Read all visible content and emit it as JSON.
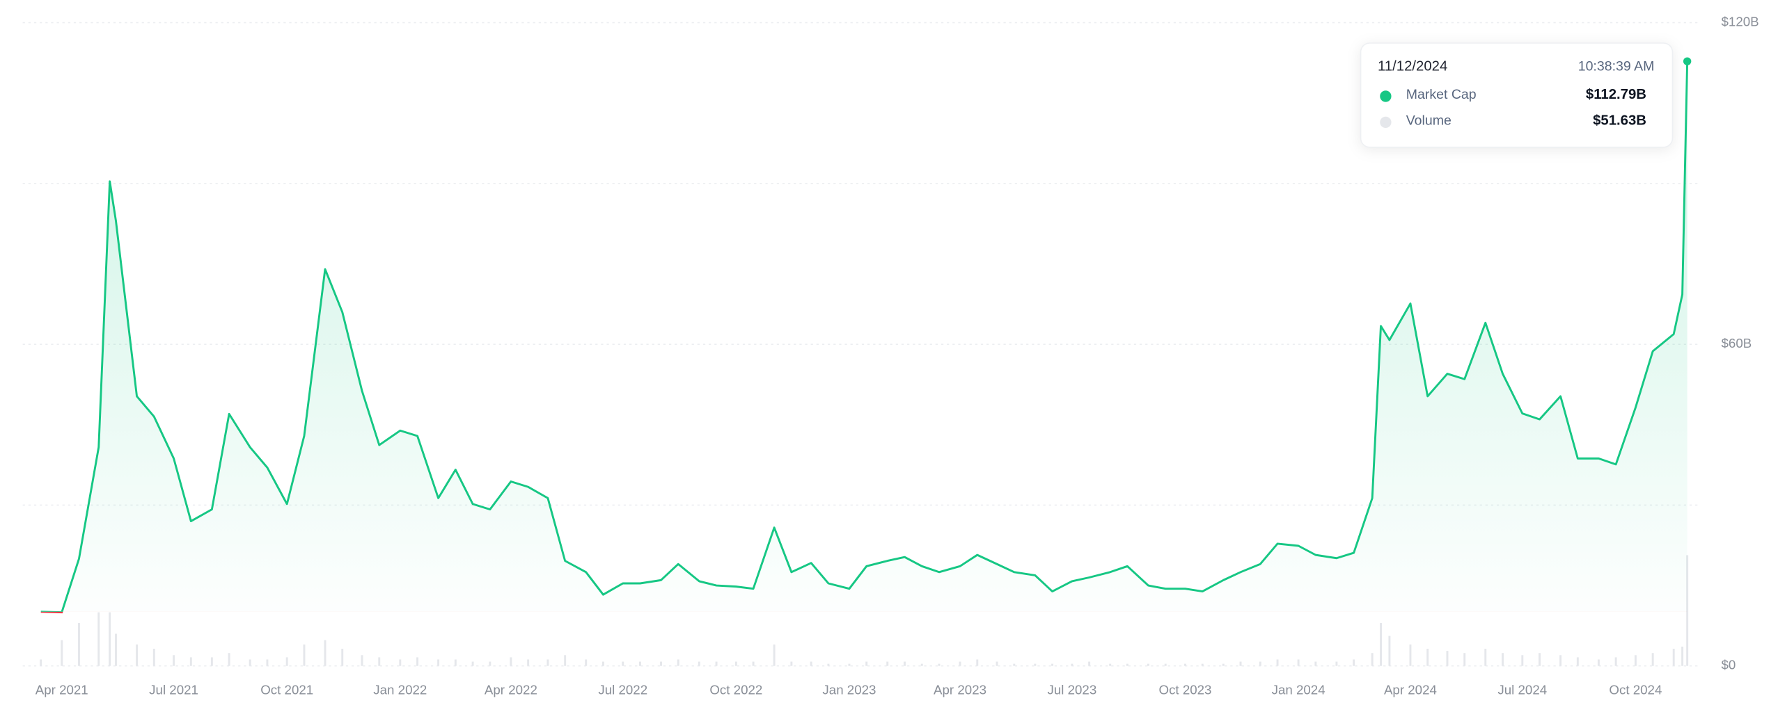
{
  "chart_data": {
    "type": "line",
    "x": [
      "2021-03-15",
      "2021-04-01",
      "2021-04-15",
      "2021-05-01",
      "2021-05-10",
      "2021-05-15",
      "2021-06-01",
      "2021-06-15",
      "2021-07-01",
      "2021-07-15",
      "2021-08-01",
      "2021-08-15",
      "2021-09-01",
      "2021-09-15",
      "2021-10-01",
      "2021-10-15",
      "2021-11-01",
      "2021-11-15",
      "2021-12-01",
      "2021-12-15",
      "2022-01-01",
      "2022-01-15",
      "2022-02-01",
      "2022-02-15",
      "2022-03-01",
      "2022-03-15",
      "2022-04-01",
      "2022-04-15",
      "2022-05-01",
      "2022-05-15",
      "2022-06-01",
      "2022-06-15",
      "2022-07-01",
      "2022-07-15",
      "2022-08-01",
      "2022-08-15",
      "2022-09-01",
      "2022-09-15",
      "2022-10-01",
      "2022-10-15",
      "2022-11-01",
      "2022-11-15",
      "2022-12-01",
      "2022-12-15",
      "2023-01-01",
      "2023-01-15",
      "2023-02-01",
      "2023-02-15",
      "2023-03-01",
      "2023-03-15",
      "2023-04-01",
      "2023-04-15",
      "2023-05-01",
      "2023-05-15",
      "2023-06-01",
      "2023-06-15",
      "2023-07-01",
      "2023-07-15",
      "2023-08-01",
      "2023-08-15",
      "2023-09-01",
      "2023-09-15",
      "2023-10-01",
      "2023-10-15",
      "2023-11-01",
      "2023-11-15",
      "2023-12-01",
      "2023-12-15",
      "2024-01-01",
      "2024-01-15",
      "2024-02-01",
      "2024-02-15",
      "2024-03-01",
      "2024-03-08",
      "2024-03-15",
      "2024-04-01",
      "2024-04-15",
      "2024-05-01",
      "2024-05-15",
      "2024-06-01",
      "2024-06-15",
      "2024-07-01",
      "2024-07-15",
      "2024-08-01",
      "2024-08-15",
      "2024-09-01",
      "2024-09-15",
      "2024-10-01",
      "2024-10-15",
      "2024-11-01",
      "2024-11-08",
      "2024-11-12"
    ],
    "series": [
      {
        "name": "Market Cap",
        "color": "#16c784",
        "negative_color": "#ea3943",
        "values": [
          10.1,
          10.0,
          20,
          40.8,
          90.4,
          83,
          50.3,
          46.5,
          38.7,
          27,
          29.2,
          47,
          40.8,
          37,
          30.2,
          42.9,
          74,
          66,
          51.3,
          41.2,
          43.9,
          42.9,
          31.3,
          36.6,
          30.2,
          29.2,
          34.4,
          33.4,
          31.3,
          19.6,
          17.5,
          13.3,
          15.4,
          15.4,
          16,
          19,
          15.8,
          15,
          14.8,
          14.4,
          25.8,
          17.5,
          19.2,
          15.4,
          14.4,
          18.6,
          19.6,
          20.3,
          18.6,
          17.5,
          18.6,
          20.7,
          19,
          17.5,
          16.9,
          13.9,
          15.8,
          16.5,
          17.5,
          18.6,
          15,
          14.4,
          14.4,
          13.9,
          16,
          17.5,
          19,
          22.8,
          22.4,
          20.7,
          20.1,
          21.1,
          31.3,
          63.4,
          60.8,
          67.6,
          50.3,
          54.5,
          53.5,
          64,
          54.5,
          47.1,
          46,
          50.3,
          38.7,
          38.7,
          37.6,
          48.2,
          58.7,
          61.9,
          69.3,
          112.79
        ]
      },
      {
        "name": "Volume",
        "color": "#e5e7eb",
        "type": "bar",
        "axis": "y2",
        "values": [
          3,
          12,
          20,
          25,
          25,
          15,
          10,
          8,
          5,
          4,
          4,
          6,
          3,
          3,
          4,
          10,
          12,
          8,
          5,
          4,
          3,
          4,
          3,
          3,
          2,
          2,
          4,
          3,
          3,
          5,
          3,
          2,
          2,
          2,
          2,
          3,
          2,
          2,
          2,
          2,
          10,
          2,
          2,
          1,
          1,
          2,
          2,
          2,
          1,
          1,
          2,
          3,
          2,
          1,
          1,
          1,
          1,
          2,
          1,
          1,
          1,
          1,
          1,
          1,
          1,
          2,
          2,
          3,
          3,
          2,
          2,
          3,
          6,
          20,
          14,
          10,
          8,
          7,
          6,
          8,
          6,
          5,
          6,
          5,
          4,
          3,
          4,
          5,
          6,
          8,
          9,
          51.63
        ]
      }
    ],
    "xlim": [
      "2021-03-15",
      "2024-11-12"
    ],
    "xticks": [
      {
        "value": "2021-04-01",
        "label": "Apr 2021"
      },
      {
        "value": "2021-07-01",
        "label": "Jul 2021"
      },
      {
        "value": "2021-10-01",
        "label": "Oct 2021"
      },
      {
        "value": "2022-01-01",
        "label": "Jan 2022"
      },
      {
        "value": "2022-04-01",
        "label": "Apr 2022"
      },
      {
        "value": "2022-07-01",
        "label": "Jul 2022"
      },
      {
        "value": "2022-10-01",
        "label": "Oct 2022"
      },
      {
        "value": "2023-01-01",
        "label": "Jan 2023"
      },
      {
        "value": "2023-04-01",
        "label": "Apr 2023"
      },
      {
        "value": "2023-07-01",
        "label": "Jul 2023"
      },
      {
        "value": "2023-10-01",
        "label": "Oct 2023"
      },
      {
        "value": "2024-01-01",
        "label": "Jan 2024"
      },
      {
        "value": "2024-04-01",
        "label": "Apr 2024"
      },
      {
        "value": "2024-07-01",
        "label": "Jul 2024"
      },
      {
        "value": "2024-10-01",
        "label": "Oct 2024"
      }
    ],
    "ylim": [
      0,
      120
    ],
    "yticks": [
      {
        "value": 0,
        "label": "$0"
      },
      {
        "value": 60,
        "label": "$60B"
      },
      {
        "value": 120,
        "label": "$120B"
      }
    ],
    "ygrid": [
      30,
      90
    ],
    "y2lim": [
      0,
      300
    ],
    "grid": true,
    "tooltip": {
      "date": "11/12/2024",
      "time": "10:38:39 AM",
      "value_labels": [
        "$112.79B",
        "$51.63B"
      ]
    }
  }
}
